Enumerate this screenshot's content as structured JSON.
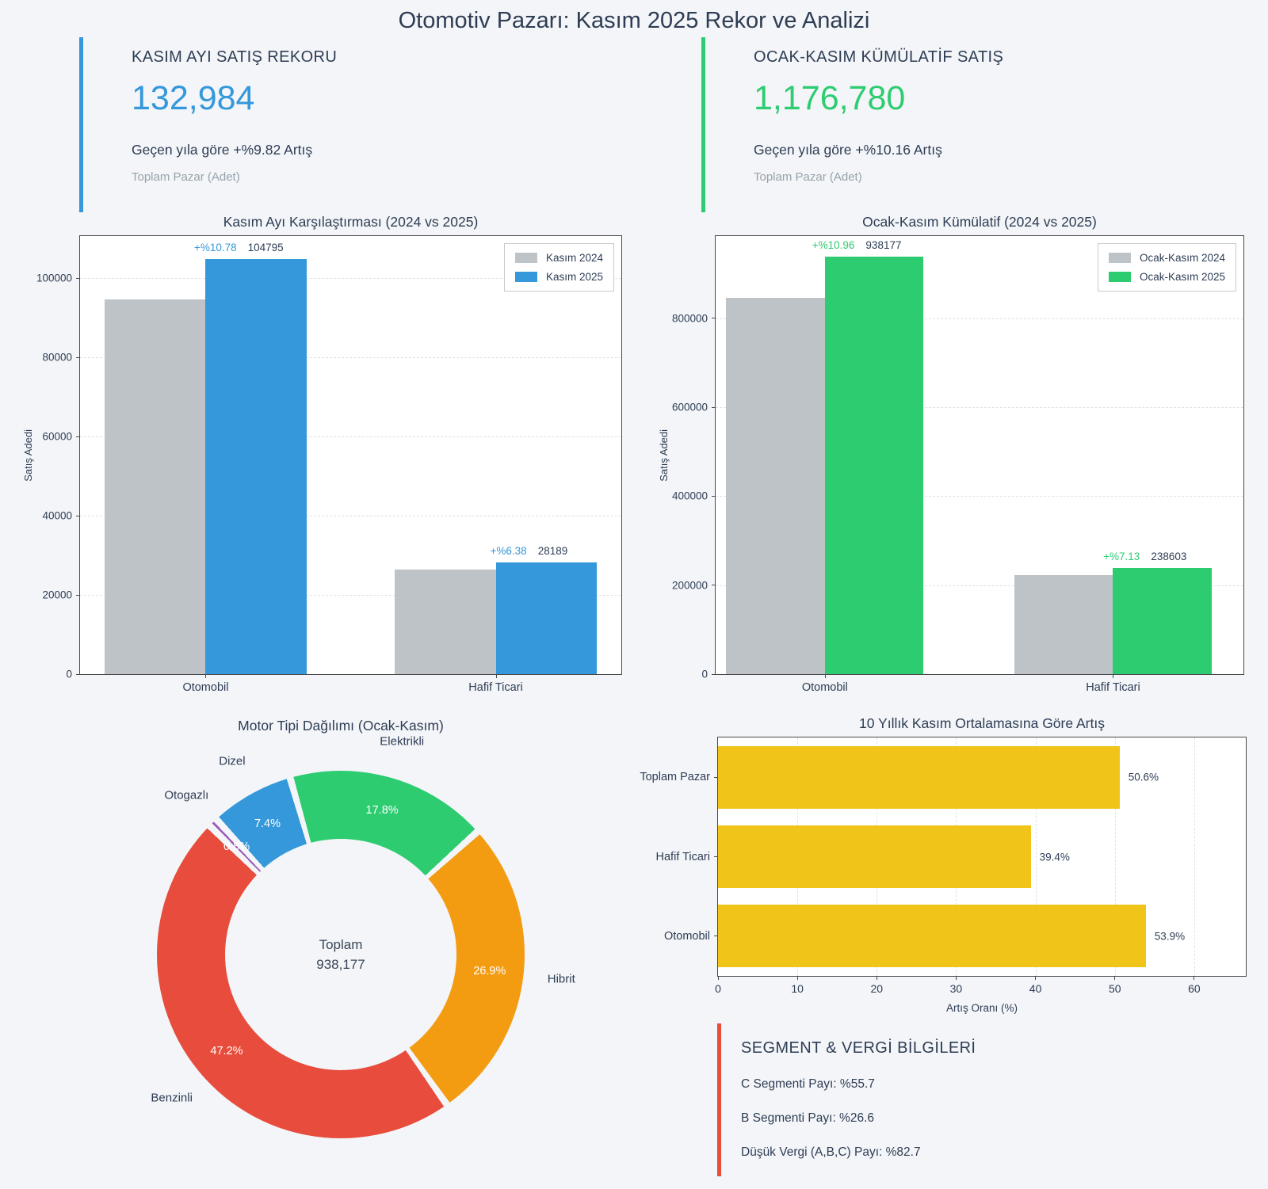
{
  "theme": {
    "background": "#f3f5f8",
    "text": "#2e3d54",
    "muted": "#98a2ab",
    "spine": "#4a4a4a",
    "grid": "#dfe2e6"
  },
  "header": {
    "title": "Otomotiv Pazarı: Kasım 2025 Rekor ve Analizi"
  },
  "kpis": [
    {
      "title": "KASIM AYI SATIŞ REKORU",
      "value": "132,984",
      "subtitle": "Geçen yıla göre +%9.82 Artış",
      "caption": "Toplam Pazar (Adet)",
      "accent": "#3498db"
    },
    {
      "title": "OCAK-KASIM KÜMÜLATİF SATIŞ",
      "value": "1,176,780",
      "subtitle": "Geçen yıla göre +%10.16 Artış",
      "caption": "Toplam Pazar (Adet)",
      "accent": "#2ecc71"
    }
  ],
  "chart_data": [
    {
      "id": "november",
      "type": "bar",
      "title": "Kasım Ayı Karşılaştırması (2024 vs 2025)",
      "categories": [
        "Otomobil",
        "Hafif Ticari"
      ],
      "series": [
        {
          "name": "Kasım 2024",
          "color": "#bdc3c7",
          "values": [
            94600,
            26500
          ]
        },
        {
          "name": "Kasım 2025",
          "color": "#3498db",
          "values": [
            104795,
            28189
          ]
        }
      ],
      "annotations": [
        {
          "pct": "+%10.78",
          "value": "104795"
        },
        {
          "pct": "+%6.38",
          "value": "28189"
        }
      ],
      "ylabel": "Satış Adedi",
      "ylim": [
        0,
        110600
      ],
      "yticks": [
        0,
        20000,
        40000,
        60000,
        80000,
        100000
      ],
      "grid": true,
      "legend_position": "top-right",
      "layout": {
        "centers": [
          0.232,
          0.768
        ],
        "bar_frac": 0.187
      }
    },
    {
      "id": "cumulative",
      "type": "bar",
      "title": "Ocak-Kasım Kümülatif (2024 vs 2025)",
      "categories": [
        "Otomobil",
        "Hafif Ticari"
      ],
      "series": [
        {
          "name": "Ocak-Kasım 2024",
          "color": "#bdc3c7",
          "values": [
            845500,
            222700
          ]
        },
        {
          "name": "Ocak-Kasım 2025",
          "color": "#2ecc71",
          "values": [
            938177,
            238603
          ]
        }
      ],
      "annotations": [
        {
          "pct": "+%10.96",
          "value": "938177"
        },
        {
          "pct": "+%7.13",
          "value": "238603"
        }
      ],
      "ylabel": "Satış Adedi",
      "ylim": [
        0,
        985000
      ],
      "yticks": [
        0,
        200000,
        400000,
        600000,
        800000
      ],
      "grid": true,
      "legend_position": "top-right",
      "layout": {
        "centers": [
          0.207,
          0.753
        ],
        "bar_frac": 0.187
      }
    },
    {
      "id": "engine",
      "type": "pie",
      "title": "Motor Tipi Dağılımı (Ocak-Kasım)",
      "center_label": "Toplam",
      "center_value": "938,177",
      "start_angle": 344,
      "gap_deg": 1.1,
      "total_pct": 100.1,
      "label_radius": 280,
      "pct_radius": 189,
      "slices": [
        {
          "label": "Elektrikli",
          "pct": 17.8,
          "color": "#2ecc71"
        },
        {
          "label": "Hibrit",
          "pct": 26.9,
          "color": "#f39c12"
        },
        {
          "label": "Benzinli",
          "pct": 47.2,
          "color": "#e74c3c"
        },
        {
          "label": "Otogazlı",
          "pct": 0.8,
          "color": "#9b59b6"
        },
        {
          "label": "Dizel",
          "pct": 7.4,
          "color": "#3498db"
        }
      ]
    },
    {
      "id": "tenyear",
      "type": "hbar",
      "title": "10 Yıllık Kasım Ortalamasına Göre Artış",
      "categories": [
        "Toplam Pazar",
        "Hafif Ticari",
        "Otomobil"
      ],
      "values": [
        50.6,
        39.4,
        53.9
      ],
      "labels": [
        "50.6%",
        "39.4%",
        "53.9%"
      ],
      "color": "#f0c419",
      "xlabel": "Artış Oranı (%)",
      "xlim": [
        0,
        66.5
      ],
      "xticks": [
        0,
        10,
        20,
        30,
        40,
        50,
        60
      ],
      "grid": true
    }
  ],
  "segment_panel": {
    "title": "SEGMENT & VERGİ BİLGİLERİ",
    "accent": "#e74c3c",
    "items": [
      "C Segmenti Payı: %55.7",
      "B Segmenti Payı: %26.6",
      "Düşük Vergi (A,B,C) Payı: %82.7"
    ]
  }
}
